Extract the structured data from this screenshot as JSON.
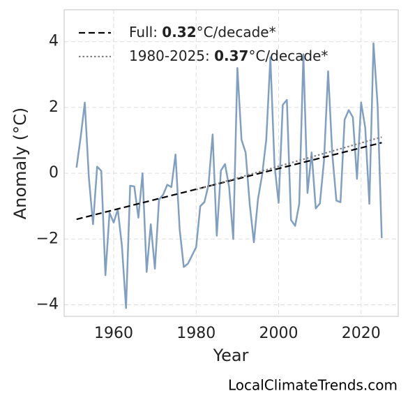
{
  "chart_data": {
    "type": "line",
    "xlabel": "Year",
    "ylabel": "Anomaly (°C)",
    "footer": "LocalClimateTrends.com",
    "x": [
      1951,
      1952,
      1953,
      1954,
      1955,
      1956,
      1957,
      1958,
      1959,
      1960,
      1961,
      1962,
      1963,
      1964,
      1965,
      1966,
      1967,
      1968,
      1969,
      1970,
      1971,
      1972,
      1973,
      1974,
      1975,
      1976,
      1977,
      1978,
      1979,
      1980,
      1981,
      1982,
      1983,
      1984,
      1985,
      1986,
      1987,
      1988,
      1989,
      1990,
      1991,
      1992,
      1993,
      1994,
      1995,
      1996,
      1997,
      1998,
      1999,
      2000,
      2001,
      2002,
      2003,
      2004,
      2005,
      2006,
      2007,
      2008,
      2009,
      2010,
      2011,
      2012,
      2013,
      2014,
      2015,
      2016,
      2017,
      2018,
      2019,
      2020,
      2021,
      2022,
      2023,
      2024,
      2025
    ],
    "series": [
      {
        "color": "#809fc1",
        "values": [
          0.17,
          1.1,
          2.15,
          -0.15,
          -1.55,
          0.2,
          0.07,
          -3.1,
          -1.2,
          -1.5,
          -1.1,
          -2.2,
          -4.1,
          -0.38,
          -0.4,
          -1.35,
          0.0,
          -3.0,
          -1.55,
          -2.9,
          -0.8,
          -0.65,
          -0.35,
          -0.42,
          0.57,
          -1.7,
          -2.85,
          -2.75,
          -2.5,
          -2.25,
          -1.0,
          -0.88,
          -0.35,
          1.18,
          -1.9,
          0.08,
          0.28,
          -0.42,
          -2.0,
          3.2,
          1.02,
          0.63,
          -0.95,
          -2.1,
          -0.78,
          -0.05,
          1.02,
          3.52,
          0.25,
          -0.9,
          2.08,
          2.23,
          -1.42,
          -1.6,
          -0.93,
          3.62,
          -0.6,
          0.63,
          -1.07,
          -0.92,
          0.38,
          3.1,
          0.6,
          -0.83,
          -0.88,
          1.63,
          1.92,
          1.7,
          -0.17,
          2.15,
          1.38,
          -0.93,
          3.95,
          2.07,
          -1.97
        ]
      }
    ],
    "trends": [
      {
        "name_parts": [
          "Full: ",
          "0.32",
          "°C/decade*"
        ],
        "color": "#000000",
        "dash": "dashed",
        "x": [
          1951,
          2025
        ],
        "values": [
          -1.4,
          0.93
        ]
      },
      {
        "name_parts": [
          "1980-2025: ",
          "0.37",
          "°C/decade*"
        ],
        "color": "#808080",
        "dash": "dotted",
        "x": [
          1980,
          2025
        ],
        "values": [
          -0.5,
          1.1
        ]
      }
    ],
    "xlim": [
      1948,
      2029
    ],
    "ylim": [
      -4.35,
      4.97
    ],
    "xticks": [
      1960,
      1980,
      2000,
      2020
    ],
    "yticks": [
      {
        "value": -4,
        "label": "−4"
      },
      {
        "value": -2,
        "label": "−2"
      },
      0,
      2,
      4
    ],
    "grid": true,
    "legend": "upper left"
  }
}
